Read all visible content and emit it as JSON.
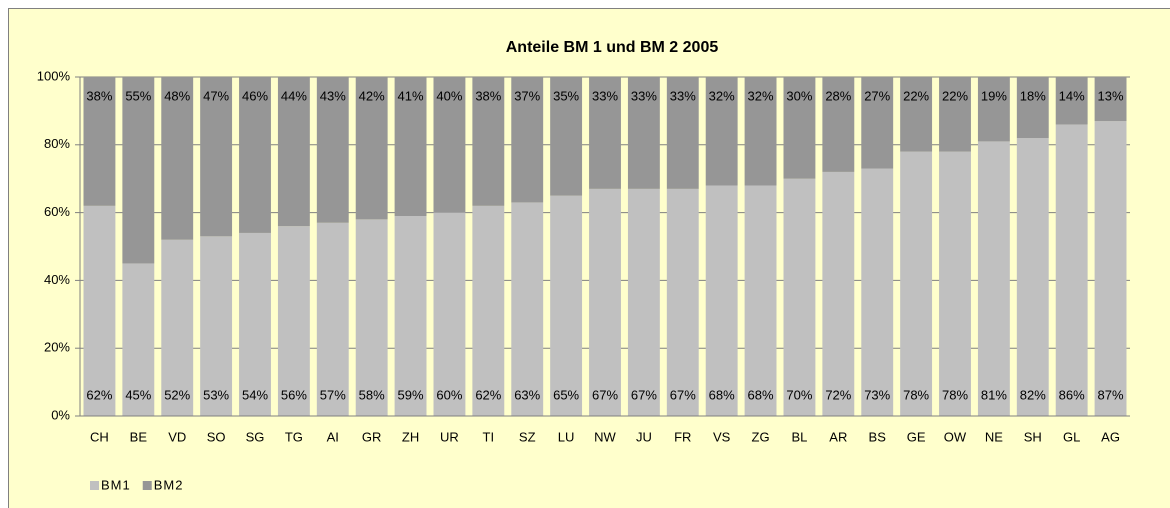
{
  "chart_data": {
    "type": "stacked_bar",
    "title": "Anteile BM 1 und BM 2 2005",
    "categories": [
      "CH",
      "BE",
      "VD",
      "SO",
      "SG",
      "TG",
      "AI",
      "GR",
      "ZH",
      "UR",
      "TI",
      "SZ",
      "LU",
      "NW",
      "JU",
      "FR",
      "VS",
      "ZG",
      "BL",
      "AR",
      "BS",
      "GE",
      "OW",
      "NE",
      "SH",
      "GL",
      "AG"
    ],
    "series": [
      {
        "name": "BM1",
        "color": "#c0c0c0",
        "values": [
          62,
          45,
          52,
          53,
          54,
          56,
          57,
          58,
          59,
          60,
          62,
          63,
          65,
          67,
          67,
          67,
          68,
          68,
          70,
          72,
          73,
          78,
          78,
          81,
          82,
          86,
          87
        ],
        "value_labels": [
          "62%",
          "45%",
          "52%",
          "53%",
          "54%",
          "56%",
          "57%",
          "58%",
          "59%",
          "60%",
          "62%",
          "63%",
          "65%",
          "67%",
          "67%",
          "67%",
          "68%",
          "68%",
          "70%",
          "72%",
          "73%",
          "78%",
          "78%",
          "81%",
          "82%",
          "86%",
          "87%"
        ]
      },
      {
        "name": "BM2",
        "color": "#969696",
        "values": [
          38,
          55,
          48,
          47,
          46,
          44,
          43,
          42,
          41,
          40,
          38,
          37,
          35,
          33,
          33,
          33,
          32,
          32,
          30,
          28,
          27,
          22,
          22,
          19,
          18,
          14,
          13
        ],
        "value_labels": [
          "38%",
          "55%",
          "48%",
          "47%",
          "46%",
          "44%",
          "43%",
          "42%",
          "41%",
          "40%",
          "38%",
          "37%",
          "35%",
          "33%",
          "33%",
          "33%",
          "32%",
          "32%",
          "30%",
          "28%",
          "27%",
          "22%",
          "22%",
          "19%",
          "18%",
          "14%",
          "13%"
        ]
      }
    ],
    "ylim": [
      0,
      100
    ],
    "yticks": [
      {
        "value": 0,
        "label": "0%"
      },
      {
        "value": 20,
        "label": "20%"
      },
      {
        "value": 40,
        "label": "40%"
      },
      {
        "value": 60,
        "label": "60%"
      },
      {
        "value": 80,
        "label": "80%"
      },
      {
        "value": 100,
        "label": "100%"
      }
    ],
    "grid": true,
    "legend": "bottom-left"
  }
}
